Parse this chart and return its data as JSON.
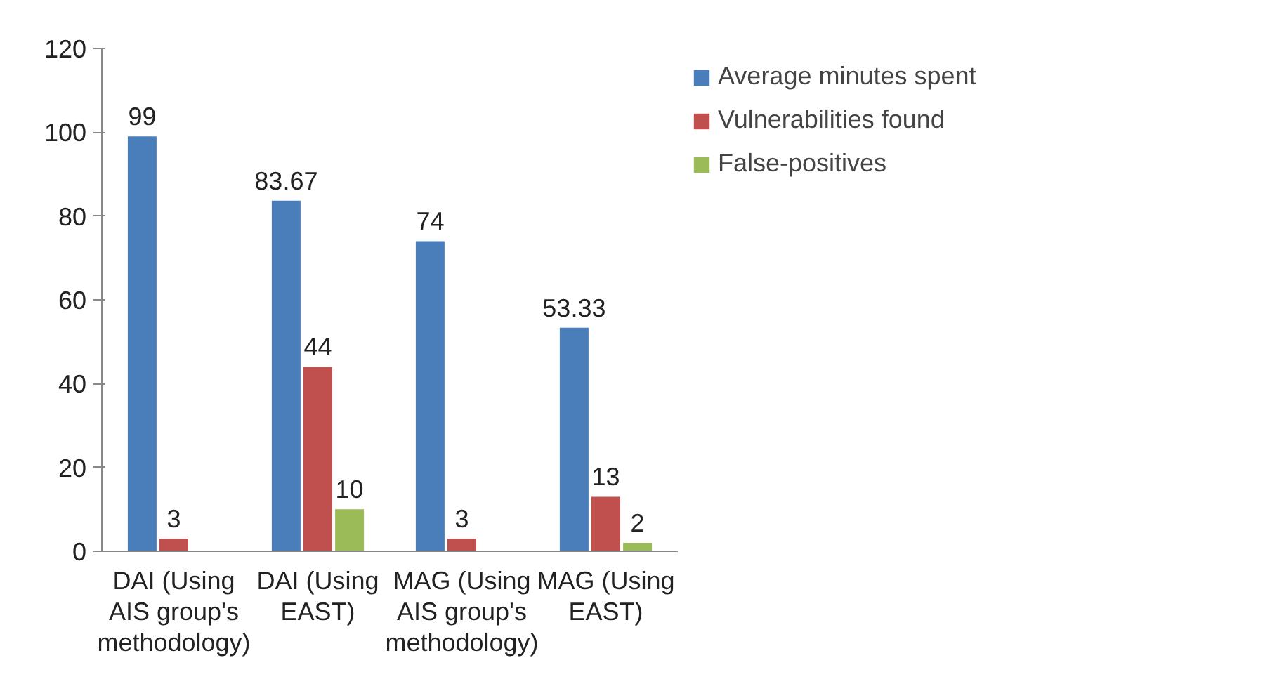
{
  "chart_data": {
    "type": "bar",
    "categories": [
      "DAI (Using AIS group's methodology)",
      "DAI (Using EAST)",
      "MAG (Using AIS group's methodology)",
      "MAG (Using EAST)"
    ],
    "series": [
      {
        "name": "Average minutes spent",
        "color": "#4a7ebb",
        "values": [
          99,
          83.67,
          74,
          53.33
        ],
        "value_labels": [
          "99",
          "83.67",
          "74",
          "53.33"
        ]
      },
      {
        "name": "Vulnerabilities found",
        "color": "#c0504d",
        "values": [
          3,
          44,
          3,
          13
        ],
        "value_labels": [
          "3",
          "44",
          "3",
          "13"
        ]
      },
      {
        "name": "False-positives",
        "color": "#9bbb59",
        "values": [
          0,
          10,
          0,
          2
        ],
        "value_labels": [
          null,
          "10",
          null,
          "2"
        ]
      }
    ],
    "ylim": [
      0,
      120
    ],
    "yticks": [
      0,
      20,
      40,
      60,
      80,
      100,
      120
    ],
    "grid": false,
    "legend": "top right"
  }
}
